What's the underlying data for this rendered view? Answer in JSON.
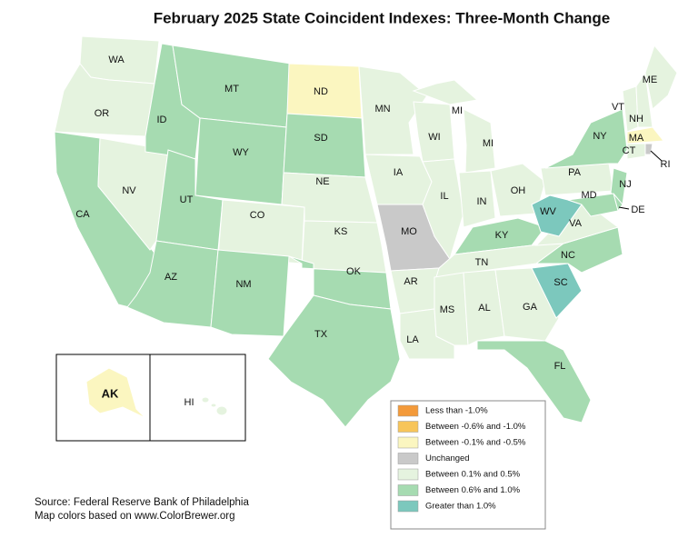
{
  "title": "February 2025 State Coincident Indexes: Three-Month Change",
  "legend": [
    {
      "label": "Less than -1.0%",
      "color": "#f39a3a"
    },
    {
      "label": "Between -0.6% and -1.0%",
      "color": "#f7c55a"
    },
    {
      "label": "Between -0.1% and -0.5%",
      "color": "#fbf6c0"
    },
    {
      "label": "Unchanged",
      "color": "#c9c9c9"
    },
    {
      "label": "Between 0.1% and 0.5%",
      "color": "#e5f3df"
    },
    {
      "label": "Between 0.6% and 1.0%",
      "color": "#a6dbb1"
    },
    {
      "label": "Greater than 1.0%",
      "color": "#7cc8bd"
    }
  ],
  "states": [
    {
      "label": "WA",
      "class": 4
    },
    {
      "label": "OR",
      "class": 4
    },
    {
      "label": "CA",
      "class": 5
    },
    {
      "label": "NV",
      "class": 4
    },
    {
      "label": "ID",
      "class": 5
    },
    {
      "label": "MT",
      "class": 5
    },
    {
      "label": "WY",
      "class": 5
    },
    {
      "label": "UT",
      "class": 5
    },
    {
      "label": "CO",
      "class": 4
    },
    {
      "label": "AZ",
      "class": 5
    },
    {
      "label": "NM",
      "class": 5
    },
    {
      "label": "ND",
      "class": 2
    },
    {
      "label": "SD",
      "class": 5
    },
    {
      "label": "NE",
      "class": 4
    },
    {
      "label": "KS",
      "class": 4
    },
    {
      "label": "OK",
      "class": 5
    },
    {
      "label": "TX",
      "class": 5
    },
    {
      "label": "MN",
      "class": 4
    },
    {
      "label": "IA",
      "class": 4
    },
    {
      "label": "MO",
      "class": 3
    },
    {
      "label": "AR",
      "class": 4
    },
    {
      "label": "LA",
      "class": 4
    },
    {
      "label": "WI",
      "class": 4
    },
    {
      "label": "IL",
      "class": 4
    },
    {
      "label": "MI",
      "class": 4
    },
    {
      "label": "MI",
      "class": 4
    },
    {
      "label": "IN",
      "class": 4
    },
    {
      "label": "OH",
      "class": 4
    },
    {
      "label": "KY",
      "class": 5
    },
    {
      "label": "TN",
      "class": 4
    },
    {
      "label": "MS",
      "class": 4
    },
    {
      "label": "AL",
      "class": 4
    },
    {
      "label": "GA",
      "class": 4
    },
    {
      "label": "FL",
      "class": 5
    },
    {
      "label": "SC",
      "class": 6
    },
    {
      "label": "NC",
      "class": 5
    },
    {
      "label": "VA",
      "class": 4
    },
    {
      "label": "WV",
      "class": 6
    },
    {
      "label": "PA",
      "class": 4
    },
    {
      "label": "NY",
      "class": 5
    },
    {
      "label": "NJ",
      "class": 5
    },
    {
      "label": "DE",
      "class": 5
    },
    {
      "label": "MD",
      "class": 5
    },
    {
      "label": "VT",
      "class": 4
    },
    {
      "label": "NH",
      "class": 4
    },
    {
      "label": "ME",
      "class": 4
    },
    {
      "label": "MA",
      "class": 2
    },
    {
      "label": "CT",
      "class": 4
    },
    {
      "label": "RI",
      "class": 3
    },
    {
      "label": "AK",
      "class": 2
    },
    {
      "label": "HI",
      "class": 4
    }
  ],
  "source": [
    "Source: Federal Reserve Bank of Philadelphia",
    "Map colors based on www.ColorBrewer.org"
  ]
}
